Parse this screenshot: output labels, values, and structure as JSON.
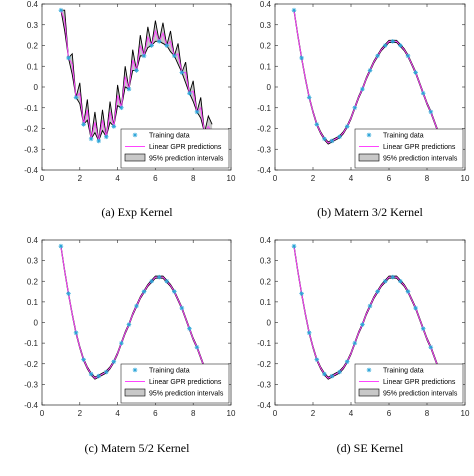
{
  "chart_data": [
    {
      "type": "line",
      "caption": "(a) Exp Kernel",
      "xlim": [
        0,
        10
      ],
      "ylim": [
        -0.4,
        0.4
      ],
      "xticks": [
        "0",
        "2",
        "4",
        "6",
        "8",
        "10"
      ],
      "yticks": [
        "-0.4",
        "-0.3",
        "-0.2",
        "-0.1",
        "0",
        "0.1",
        "0.2",
        "0.3",
        "0.4"
      ],
      "legend_position": "bottom-right",
      "legend": [
        "Training data",
        "Linear GPR predictions",
        "95% prediction intervals"
      ],
      "training_data": {
        "x": [
          1.0,
          1.4,
          1.8,
          2.2,
          2.6,
          3.0,
          3.4,
          3.8,
          4.2,
          4.6,
          5.0,
          5.4,
          5.8,
          6.2,
          6.6,
          7.0,
          7.4,
          7.8,
          8.2,
          8.6
        ],
        "y": [
          0.37,
          0.14,
          -0.05,
          -0.18,
          -0.25,
          -0.26,
          -0.24,
          -0.19,
          -0.1,
          -0.01,
          0.08,
          0.15,
          0.2,
          0.22,
          0.2,
          0.15,
          0.07,
          -0.03,
          -0.12,
          -0.22
        ]
      },
      "prediction_x": [
        1.0,
        1.2,
        1.4,
        1.6,
        1.8,
        2.0,
        2.2,
        2.4,
        2.6,
        2.8,
        3.0,
        3.2,
        3.4,
        3.6,
        3.8,
        4.0,
        4.2,
        4.4,
        4.6,
        4.8,
        5.0,
        5.2,
        5.4,
        5.6,
        5.8,
        6.0,
        6.2,
        6.4,
        6.6,
        6.8,
        7.0,
        7.2,
        7.4,
        7.6,
        7.8,
        8.0,
        8.2,
        8.4,
        8.6,
        8.8,
        9.0
      ],
      "prediction_y": [
        0.37,
        0.32,
        0.14,
        0.11,
        -0.05,
        -0.03,
        -0.18,
        -0.11,
        -0.25,
        -0.17,
        -0.26,
        -0.16,
        -0.24,
        -0.12,
        -0.19,
        -0.04,
        -0.1,
        0.05,
        -0.01,
        0.13,
        0.08,
        0.2,
        0.15,
        0.24,
        0.2,
        0.27,
        0.22,
        0.26,
        0.2,
        0.22,
        0.15,
        0.16,
        0.07,
        0.07,
        -0.03,
        -0.02,
        -0.12,
        -0.1,
        -0.22,
        -0.19,
        -0.22
      ],
      "prediction_halfwidth": [
        0.0,
        0.05,
        0.0,
        0.05,
        0.0,
        0.05,
        0.0,
        0.05,
        0.0,
        0.05,
        0.0,
        0.05,
        0.0,
        0.05,
        0.0,
        0.05,
        0.0,
        0.05,
        0.0,
        0.05,
        0.0,
        0.05,
        0.0,
        0.05,
        0.0,
        0.05,
        0.0,
        0.05,
        0.0,
        0.05,
        0.0,
        0.05,
        0.0,
        0.05,
        0.0,
        0.05,
        0.0,
        0.05,
        0.0,
        0.05,
        0.04
      ]
    },
    {
      "type": "line",
      "caption": "(b) Matern 3/2 Kernel",
      "xlim": [
        0,
        10
      ],
      "ylim": [
        -0.4,
        0.4
      ],
      "xticks": [
        "0",
        "2",
        "4",
        "6",
        "8",
        "10"
      ],
      "yticks": [
        "-0.4",
        "-0.3",
        "-0.2",
        "-0.1",
        "0",
        "0.1",
        "0.2",
        "0.3",
        "0.4"
      ],
      "legend_position": "bottom-right",
      "legend": [
        "Training data",
        "Linear GPR predictions",
        "95% prediction intervals"
      ],
      "training_data": {
        "x": [
          1.0,
          1.4,
          1.8,
          2.2,
          2.6,
          3.0,
          3.4,
          3.8,
          4.2,
          4.6,
          5.0,
          5.4,
          5.8,
          6.2,
          6.6,
          7.0,
          7.4,
          7.8,
          8.2,
          8.6
        ],
        "y": [
          0.37,
          0.14,
          -0.05,
          -0.18,
          -0.25,
          -0.26,
          -0.24,
          -0.19,
          -0.1,
          -0.01,
          0.08,
          0.15,
          0.2,
          0.22,
          0.2,
          0.15,
          0.07,
          -0.03,
          -0.12,
          -0.22
        ]
      },
      "prediction_x": [
        1.0,
        1.2,
        1.4,
        1.6,
        1.8,
        2.0,
        2.2,
        2.4,
        2.6,
        2.8,
        3.0,
        3.2,
        3.4,
        3.6,
        3.8,
        4.0,
        4.2,
        4.4,
        4.6,
        4.8,
        5.0,
        5.2,
        5.4,
        5.6,
        5.8,
        6.0,
        6.2,
        6.4,
        6.6,
        6.8,
        7.0,
        7.2,
        7.4,
        7.6,
        7.8,
        8.0,
        8.2,
        8.4,
        8.6,
        8.8
      ],
      "prediction_y": [
        0.37,
        0.25,
        0.14,
        0.04,
        -0.05,
        -0.12,
        -0.18,
        -0.22,
        -0.25,
        -0.27,
        -0.26,
        -0.25,
        -0.24,
        -0.22,
        -0.19,
        -0.15,
        -0.1,
        -0.05,
        -0.01,
        0.04,
        0.08,
        0.12,
        0.15,
        0.18,
        0.2,
        0.22,
        0.22,
        0.22,
        0.2,
        0.18,
        0.15,
        0.11,
        0.07,
        0.02,
        -0.03,
        -0.08,
        -0.12,
        -0.17,
        -0.22,
        -0.27
      ],
      "prediction_halfwidth": [
        0.005,
        0.005,
        0.005,
        0.005,
        0.005,
        0.005,
        0.005,
        0.005,
        0.005,
        0.005,
        0.005,
        0.005,
        0.005,
        0.005,
        0.005,
        0.005,
        0.005,
        0.005,
        0.005,
        0.005,
        0.005,
        0.005,
        0.005,
        0.005,
        0.005,
        0.005,
        0.005,
        0.005,
        0.005,
        0.005,
        0.005,
        0.005,
        0.005,
        0.005,
        0.005,
        0.005,
        0.005,
        0.005,
        0.005,
        0.005
      ]
    },
    {
      "type": "line",
      "caption": "(c) Matern 5/2 Kernel",
      "xlim": [
        0,
        10
      ],
      "ylim": [
        -0.4,
        0.4
      ],
      "xticks": [
        "0",
        "2",
        "4",
        "6",
        "8",
        "10"
      ],
      "yticks": [
        "-0.4",
        "-0.3",
        "-0.2",
        "-0.1",
        "0",
        "0.1",
        "0.2",
        "0.3",
        "0.4"
      ],
      "legend_position": "bottom-right",
      "legend": [
        "Training data",
        "Linear GPR predictions",
        "95% prediction intervals"
      ],
      "training_data": {
        "x": [
          1.0,
          1.4,
          1.8,
          2.2,
          2.6,
          3.0,
          3.4,
          3.8,
          4.2,
          4.6,
          5.0,
          5.4,
          5.8,
          6.2,
          6.6,
          7.0,
          7.4,
          7.8,
          8.2,
          8.6
        ],
        "y": [
          0.37,
          0.14,
          -0.05,
          -0.18,
          -0.25,
          -0.26,
          -0.24,
          -0.19,
          -0.1,
          -0.01,
          0.08,
          0.15,
          0.2,
          0.22,
          0.2,
          0.15,
          0.07,
          -0.03,
          -0.12,
          -0.22
        ]
      },
      "prediction_x": [
        1.0,
        1.2,
        1.4,
        1.6,
        1.8,
        2.0,
        2.2,
        2.4,
        2.6,
        2.8,
        3.0,
        3.2,
        3.4,
        3.6,
        3.8,
        4.0,
        4.2,
        4.4,
        4.6,
        4.8,
        5.0,
        5.2,
        5.4,
        5.6,
        5.8,
        6.0,
        6.2,
        6.4,
        6.6,
        6.8,
        7.0,
        7.2,
        7.4,
        7.6,
        7.8,
        8.0,
        8.2,
        8.4,
        8.6,
        8.8
      ],
      "prediction_y": [
        0.37,
        0.25,
        0.14,
        0.04,
        -0.05,
        -0.12,
        -0.18,
        -0.22,
        -0.25,
        -0.27,
        -0.26,
        -0.25,
        -0.24,
        -0.22,
        -0.19,
        -0.15,
        -0.1,
        -0.05,
        -0.01,
        0.04,
        0.08,
        0.12,
        0.15,
        0.18,
        0.2,
        0.22,
        0.22,
        0.22,
        0.2,
        0.18,
        0.15,
        0.11,
        0.07,
        0.02,
        -0.03,
        -0.08,
        -0.12,
        -0.17,
        -0.22,
        -0.27
      ],
      "prediction_halfwidth": [
        0.005,
        0.005,
        0.005,
        0.005,
        0.005,
        0.005,
        0.005,
        0.005,
        0.005,
        0.005,
        0.005,
        0.005,
        0.005,
        0.005,
        0.005,
        0.005,
        0.005,
        0.005,
        0.005,
        0.005,
        0.005,
        0.005,
        0.005,
        0.005,
        0.005,
        0.005,
        0.005,
        0.005,
        0.005,
        0.005,
        0.005,
        0.005,
        0.005,
        0.005,
        0.005,
        0.005,
        0.005,
        0.005,
        0.005,
        0.005
      ]
    },
    {
      "type": "line",
      "caption": "(d) SE Kernel",
      "xlim": [
        0,
        10
      ],
      "ylim": [
        -0.4,
        0.4
      ],
      "xticks": [
        "0",
        "2",
        "4",
        "6",
        "8",
        "10"
      ],
      "yticks": [
        "-0.4",
        "-0.3",
        "-0.2",
        "-0.1",
        "0",
        "0.1",
        "0.2",
        "0.3",
        "0.4"
      ],
      "legend_position": "bottom-right",
      "legend": [
        "Training data",
        "Linear GPR predictions",
        "95% prediction intervals"
      ],
      "training_data": {
        "x": [
          1.0,
          1.4,
          1.8,
          2.2,
          2.6,
          3.0,
          3.4,
          3.8,
          4.2,
          4.6,
          5.0,
          5.4,
          5.8,
          6.2,
          6.6,
          7.0,
          7.4,
          7.8,
          8.2,
          8.6
        ],
        "y": [
          0.37,
          0.14,
          -0.05,
          -0.18,
          -0.25,
          -0.26,
          -0.24,
          -0.19,
          -0.1,
          -0.01,
          0.08,
          0.15,
          0.2,
          0.22,
          0.2,
          0.15,
          0.07,
          -0.03,
          -0.12,
          -0.22
        ]
      },
      "prediction_x": [
        1.0,
        1.2,
        1.4,
        1.6,
        1.8,
        2.0,
        2.2,
        2.4,
        2.6,
        2.8,
        3.0,
        3.2,
        3.4,
        3.6,
        3.8,
        4.0,
        4.2,
        4.4,
        4.6,
        4.8,
        5.0,
        5.2,
        5.4,
        5.6,
        5.8,
        6.0,
        6.2,
        6.4,
        6.6,
        6.8,
        7.0,
        7.2,
        7.4,
        7.6,
        7.8,
        8.0,
        8.2,
        8.4,
        8.6,
        8.8
      ],
      "prediction_y": [
        0.37,
        0.25,
        0.14,
        0.04,
        -0.05,
        -0.12,
        -0.18,
        -0.22,
        -0.25,
        -0.27,
        -0.26,
        -0.25,
        -0.24,
        -0.22,
        -0.19,
        -0.15,
        -0.1,
        -0.05,
        -0.01,
        0.04,
        0.08,
        0.12,
        0.15,
        0.18,
        0.2,
        0.22,
        0.22,
        0.22,
        0.2,
        0.18,
        0.15,
        0.11,
        0.07,
        0.02,
        -0.03,
        -0.08,
        -0.12,
        -0.17,
        -0.22,
        -0.27
      ],
      "prediction_halfwidth": [
        0.005,
        0.005,
        0.005,
        0.005,
        0.005,
        0.005,
        0.005,
        0.005,
        0.005,
        0.005,
        0.005,
        0.005,
        0.005,
        0.005,
        0.005,
        0.005,
        0.005,
        0.005,
        0.005,
        0.005,
        0.005,
        0.005,
        0.005,
        0.005,
        0.005,
        0.005,
        0.005,
        0.005,
        0.005,
        0.005,
        0.005,
        0.005,
        0.005,
        0.005,
        0.005,
        0.005,
        0.005,
        0.005,
        0.005,
        0.005
      ]
    }
  ],
  "colors": {
    "training_marker": "#2aa5d8",
    "prediction_line": "#ff44ff",
    "interval_fill": "#c8c8c8",
    "interval_edge": "#000000",
    "axis": "#262626"
  }
}
